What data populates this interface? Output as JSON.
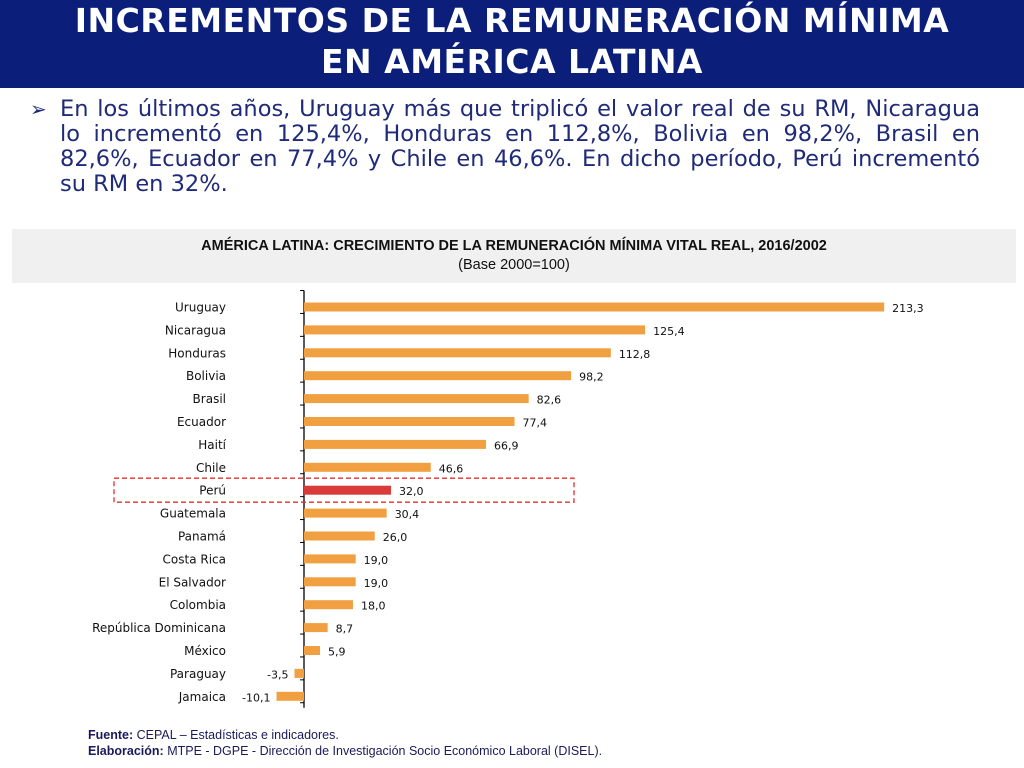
{
  "header": {
    "title_line1": "INCREMENTOS DE LA REMUNERACIÓN MÍNIMA",
    "title_line2": "EN AMÉRICA LATINA"
  },
  "bullet": {
    "text": "En los últimos años, Uruguay más que triplicó el valor real de su RM, Nicaragua lo incrementó en 125,4%, Honduras en 112,8%,  Bolivia en 98,2%, Brasil en 82,6%, Ecuador en 77,4% y Chile en 46,6%. En dicho período, Perú incrementó su RM en 32%."
  },
  "chart_data": {
    "type": "bar",
    "orientation": "horizontal",
    "title": "AMÉRICA LATINA: CRECIMIENTO DE LA REMUNERACIÓN MÍNIMA VITAL REAL, 2016/2002",
    "subtitle": "(Base 2000=100)",
    "categories": [
      "Uruguay",
      "Nicaragua",
      "Honduras",
      "Bolivia",
      "Brasil",
      "Ecuador",
      "Haití",
      "Chile",
      "Perú",
      "Guatemala",
      "Panamá",
      "Costa Rica",
      "El Salvador",
      "Colombia",
      "República Dominicana",
      "México",
      "Paraguay",
      "Jamaica"
    ],
    "values": [
      213.3,
      125.4,
      112.8,
      98.2,
      82.6,
      77.4,
      66.9,
      46.6,
      32.0,
      30.4,
      26.0,
      19.0,
      19.0,
      18.0,
      8.7,
      5.9,
      -3.5,
      -10.1
    ],
    "value_labels": [
      "213,3",
      "125,4",
      "112,8",
      "98,2",
      "82,6",
      "77,4",
      "66,9",
      "46,6",
      "32,0",
      "30,4",
      "26,0",
      "19,0",
      "19,0",
      "18,0",
      "8,7",
      "5,9",
      "-3,5",
      "-10,1"
    ],
    "highlight": "Perú",
    "xlim": [
      -12,
      215
    ],
    "grid": false,
    "colors": {
      "bar": "#f0a040",
      "highlight": "#d93a3a",
      "highlight_box": "#e03030"
    }
  },
  "footer": {
    "source_label": "Fuente:",
    "source_text": "CEPAL – Estadísticas e indicadores.",
    "author_label": "Elaboración:",
    "author_text": "MTPE - DGPE - Dirección de Investigación Socio Económico Laboral (DISEL)."
  }
}
